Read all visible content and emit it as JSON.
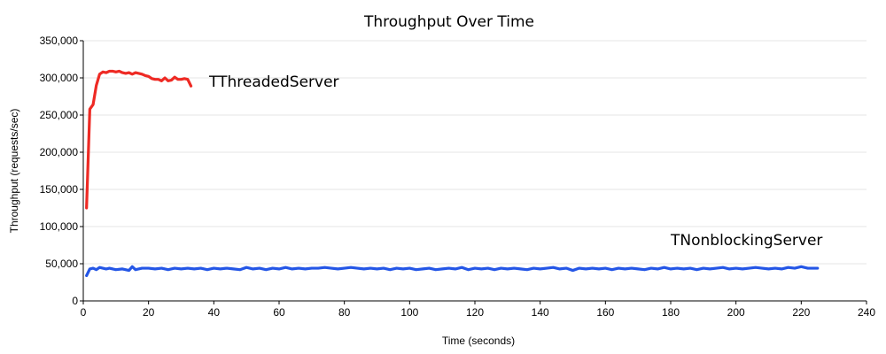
{
  "chart_data": {
    "type": "line",
    "title": "Throughput Over Time",
    "xlabel": "Time (seconds)",
    "ylabel": "Throughput (requests/sec)",
    "xlim": [
      0,
      240
    ],
    "ylim": [
      0,
      350000
    ],
    "x_ticks": [
      0,
      20,
      40,
      60,
      80,
      100,
      120,
      140,
      160,
      180,
      200,
      220,
      240
    ],
    "x_tick_labels": [
      "0",
      "20",
      "40",
      "60",
      "80",
      "100",
      "120",
      "140",
      "160",
      "180",
      "200",
      "220",
      "240"
    ],
    "y_ticks": [
      0,
      50000,
      100000,
      150000,
      200000,
      250000,
      300000,
      350000
    ],
    "y_tick_labels": [
      "0",
      "50,000",
      "100,000",
      "150,000",
      "200,000",
      "250,000",
      "300,000",
      "350,000"
    ],
    "grid": true,
    "legend": "inline labels next to series",
    "series": [
      {
        "name": "TThreadedServer",
        "color": "#ee2a24",
        "x": [
          1,
          2,
          3,
          4,
          5,
          6,
          7,
          8,
          9,
          10,
          11,
          12,
          13,
          14,
          15,
          16,
          17,
          18,
          19,
          20,
          21,
          22,
          23,
          24,
          25,
          26,
          27,
          28,
          29,
          30,
          31,
          32,
          33
        ],
        "y": [
          125000,
          258000,
          264000,
          290000,
          305000,
          308000,
          307000,
          309000,
          309000,
          308000,
          309000,
          307000,
          306000,
          307000,
          305000,
          307000,
          306000,
          305000,
          303000,
          302000,
          299000,
          298000,
          298000,
          296000,
          300000,
          296000,
          297000,
          301000,
          298000,
          298000,
          299000,
          298000,
          289000
        ]
      },
      {
        "name": "TNonblockingServer",
        "color": "#2456e6",
        "x": [
          1,
          2,
          3,
          4,
          5,
          6,
          7,
          8,
          10,
          12,
          14,
          15,
          16,
          18,
          20,
          22,
          24,
          26,
          28,
          30,
          32,
          34,
          36,
          38,
          40,
          42,
          44,
          46,
          48,
          50,
          52,
          54,
          56,
          58,
          60,
          62,
          64,
          66,
          68,
          70,
          72,
          74,
          76,
          78,
          80,
          82,
          84,
          86,
          88,
          90,
          92,
          94,
          96,
          98,
          100,
          102,
          104,
          106,
          108,
          110,
          112,
          114,
          116,
          118,
          120,
          122,
          124,
          126,
          128,
          130,
          132,
          134,
          136,
          138,
          140,
          142,
          144,
          146,
          148,
          150,
          152,
          154,
          156,
          158,
          160,
          162,
          164,
          166,
          168,
          170,
          172,
          174,
          176,
          178,
          180,
          182,
          184,
          186,
          188,
          190,
          192,
          194,
          196,
          198,
          200,
          202,
          204,
          206,
          208,
          210,
          212,
          214,
          216,
          218,
          220,
          222,
          224,
          225
        ],
        "y": [
          34000,
          43000,
          44000,
          42000,
          45000,
          44000,
          43000,
          44000,
          42000,
          43000,
          41000,
          46000,
          42000,
          44000,
          44000,
          43000,
          44000,
          42000,
          44000,
          43000,
          44000,
          43000,
          44000,
          42000,
          44000,
          43000,
          44000,
          43000,
          42000,
          45000,
          43000,
          44000,
          42000,
          44000,
          43000,
          45000,
          43000,
          44000,
          43000,
          44000,
          44000,
          45000,
          44000,
          43000,
          44000,
          45000,
          44000,
          43000,
          44000,
          43000,
          44000,
          42000,
          44000,
          43000,
          44000,
          42000,
          43000,
          44000,
          42000,
          43000,
          44000,
          43000,
          45000,
          42000,
          44000,
          43000,
          44000,
          42000,
          44000,
          43000,
          44000,
          43000,
          42000,
          44000,
          43000,
          44000,
          45000,
          43000,
          44000,
          41000,
          44000,
          43000,
          44000,
          43000,
          44000,
          42000,
          44000,
          43000,
          44000,
          43000,
          42000,
          44000,
          43000,
          45000,
          43000,
          44000,
          43000,
          44000,
          42000,
          44000,
          43000,
          44000,
          45000,
          43000,
          44000,
          43000,
          44000,
          45000,
          44000,
          43000,
          44000,
          43000,
          45000,
          44000,
          46000,
          44000,
          44000,
          44000
        ]
      }
    ]
  }
}
